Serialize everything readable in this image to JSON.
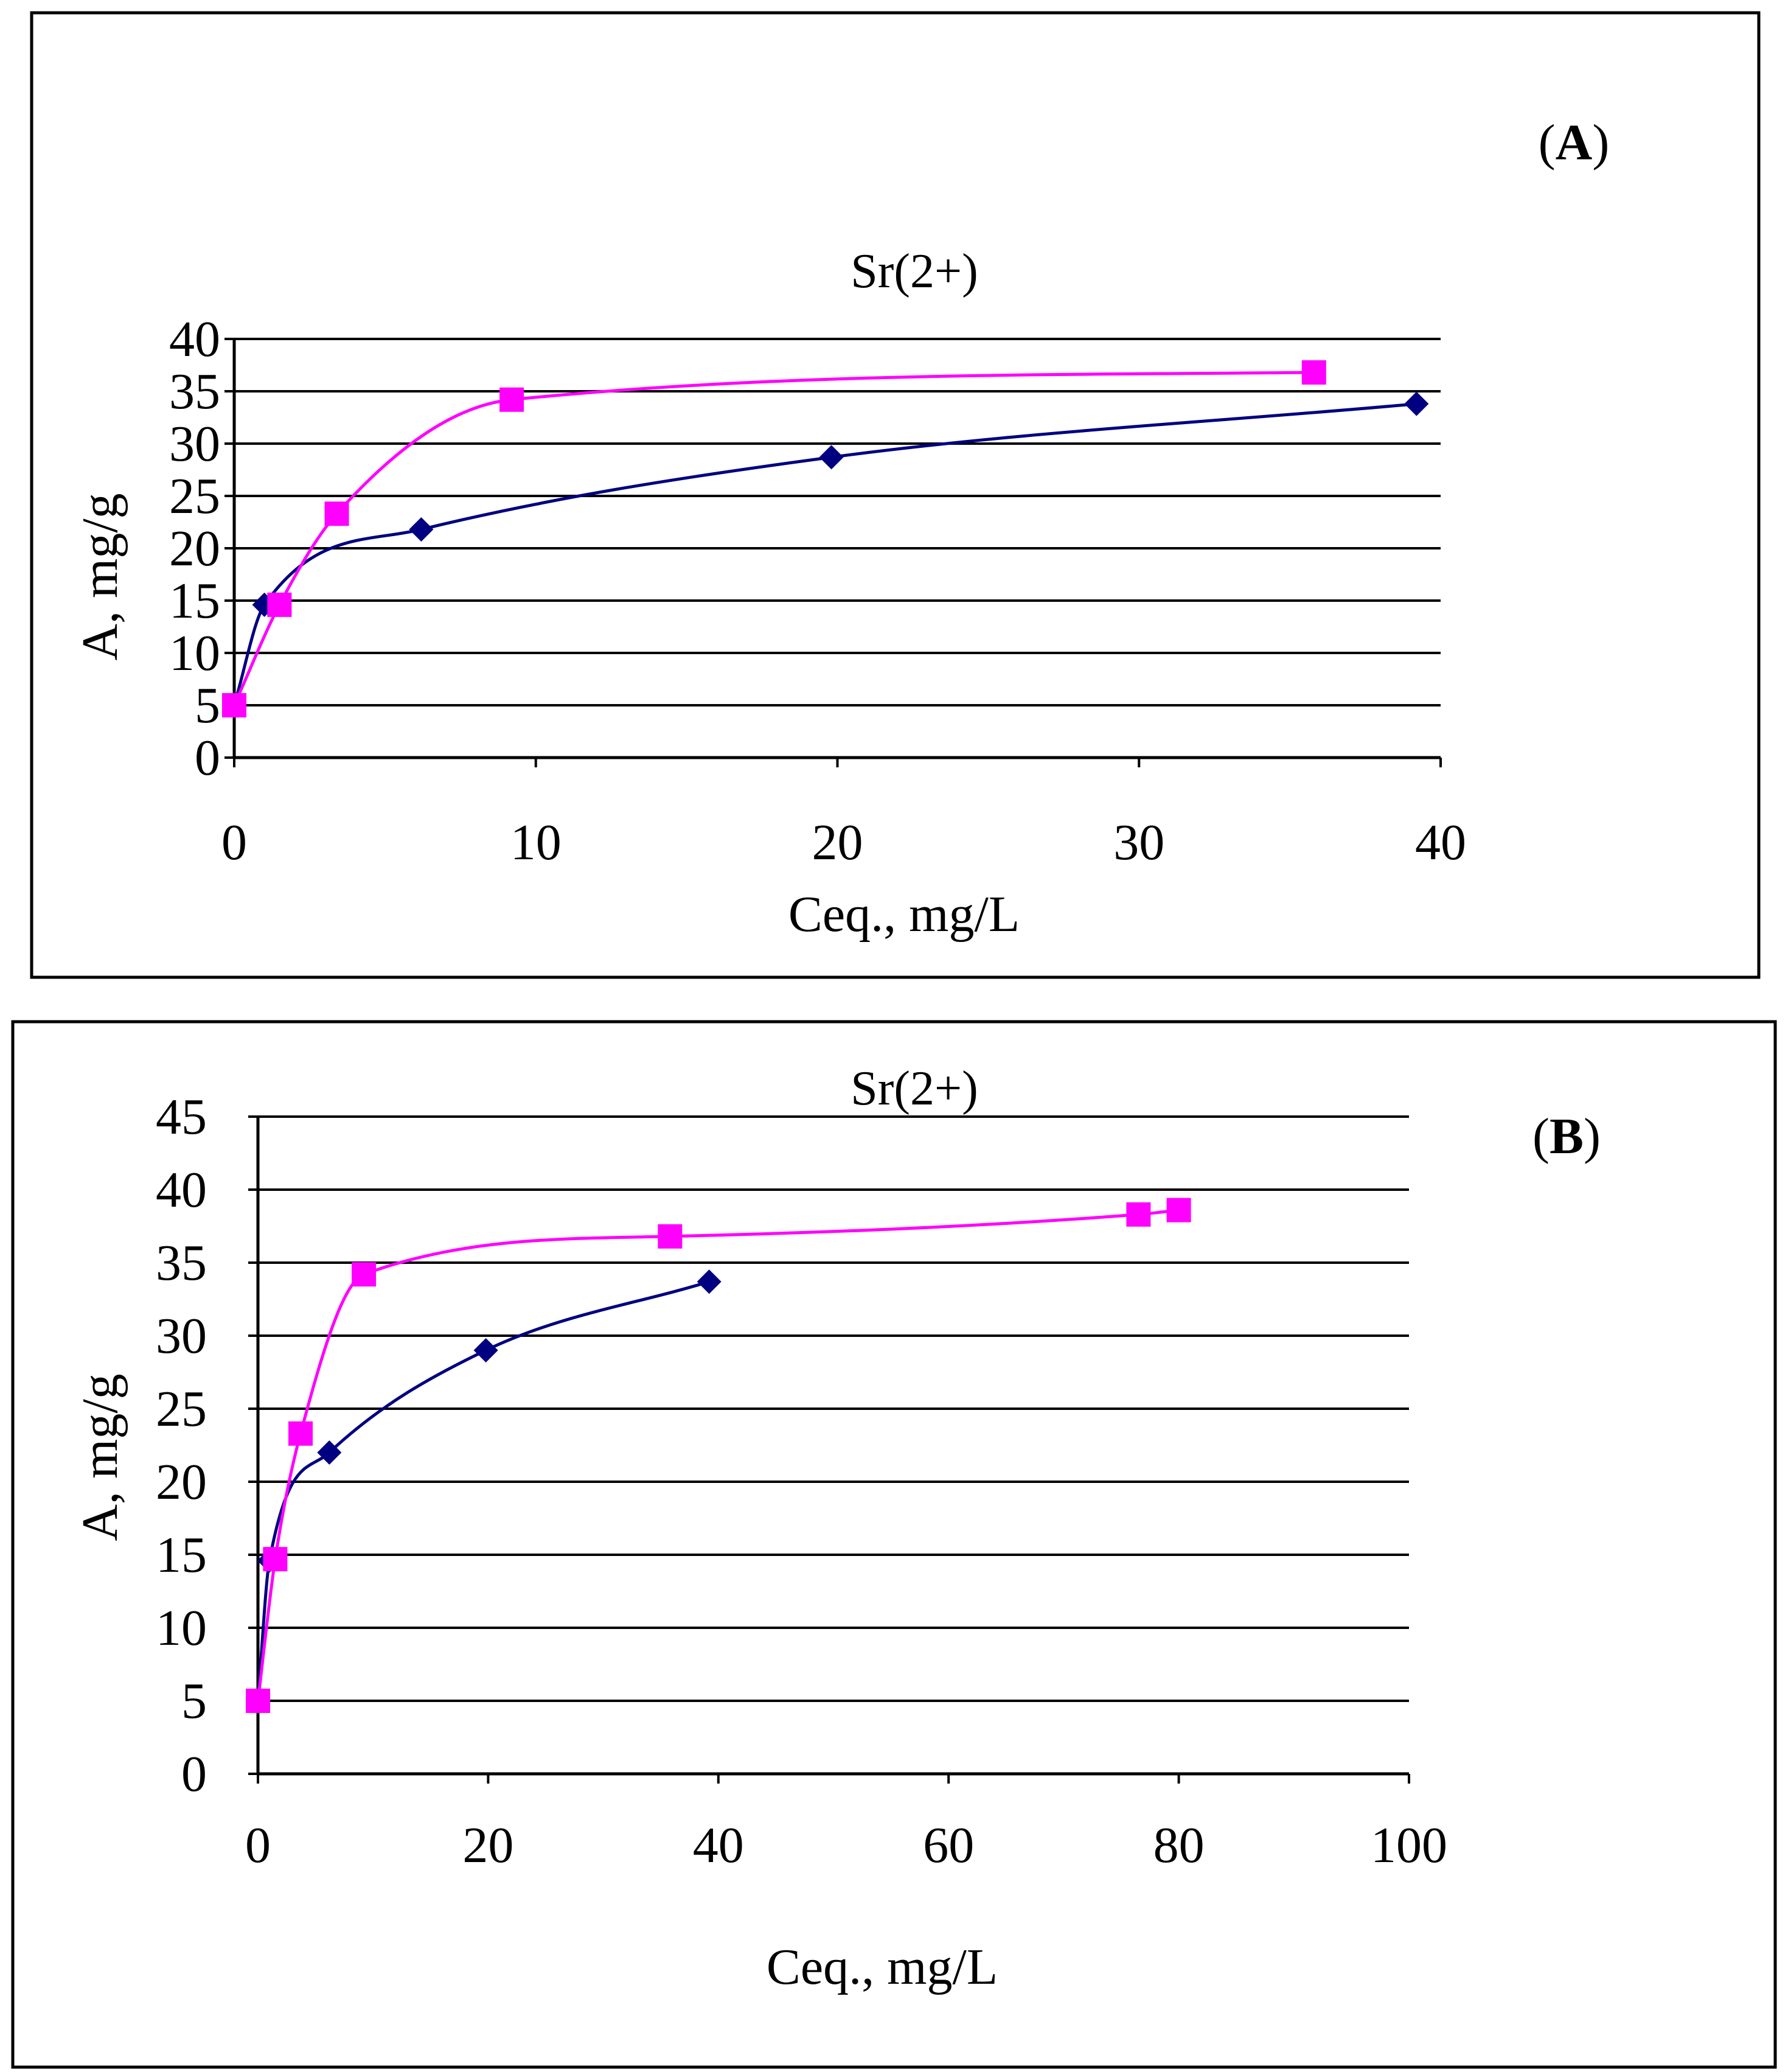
{
  "colors": {
    "series_dark": "#000080",
    "series_pink": "#ff00ff",
    "grid": "#000000",
    "frame": "#000000"
  },
  "chart_data": [
    {
      "type": "line",
      "panel_label_prefix": "(",
      "panel_letter": "A",
      "panel_label_suffix": ")",
      "title": "Sr(2+)",
      "xlabel": "Ceq., mg/L",
      "ylabel": "A, mg/g",
      "xlim": [
        0,
        40
      ],
      "ylim": [
        0,
        40
      ],
      "xticks": [
        0,
        10,
        20,
        30,
        40
      ],
      "yticks": [
        0,
        5,
        10,
        15,
        20,
        25,
        30,
        35,
        40
      ],
      "grid": true,
      "series": [
        {
          "name": "navy-diamonds",
          "marker": "diamond",
          "color": "#000080",
          "x": [
            0,
            1.0,
            6.2,
            19.8,
            39.2
          ],
          "y": [
            5,
            14.6,
            21.8,
            28.7,
            33.8
          ]
        },
        {
          "name": "magenta-squares",
          "marker": "square",
          "color": "#ff00ff",
          "x": [
            0,
            1.5,
            3.4,
            9.2,
            35.8
          ],
          "y": [
            5,
            14.6,
            23.3,
            34.2,
            36.8
          ]
        }
      ]
    },
    {
      "type": "line",
      "panel_label_prefix": "(",
      "panel_letter": "B",
      "panel_label_suffix": ")",
      "title": "Sr(2+)",
      "xlabel": "Ceq., mg/L",
      "ylabel": "A, mg/g",
      "xlim": [
        0,
        100
      ],
      "ylim": [
        0,
        45
      ],
      "xticks": [
        0,
        20,
        40,
        60,
        80,
        100
      ],
      "yticks": [
        0,
        5,
        10,
        15,
        20,
        25,
        30,
        35,
        40,
        45
      ],
      "grid": true,
      "series": [
        {
          "name": "navy-diamonds",
          "marker": "diamond",
          "color": "#000080",
          "x": [
            0,
            1.0,
            6.2,
            19.8,
            39.2
          ],
          "y": [
            5,
            14.6,
            22.0,
            29.0,
            33.7
          ]
        },
        {
          "name": "magenta-squares",
          "marker": "square",
          "color": "#ff00ff",
          "x": [
            0,
            1.5,
            3.7,
            9.2,
            35.8,
            76.5,
            80.0
          ],
          "y": [
            5,
            14.7,
            23.3,
            34.2,
            36.8,
            38.3,
            38.6
          ]
        }
      ]
    }
  ]
}
